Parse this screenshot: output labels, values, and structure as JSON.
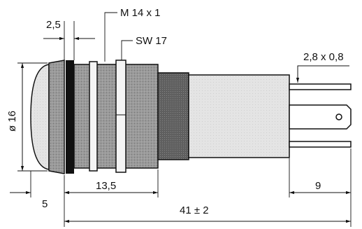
{
  "dimensions": {
    "flange_thickness": "2,5",
    "thread": "M 14 x 1",
    "wrench_size": "SW 17",
    "terminal": "2,8 x 0,8",
    "diameter": "ø 16",
    "lens_depth": "5",
    "thread_length": "13,5",
    "terminal_length": "9",
    "overall_length": "41 ± 2"
  }
}
